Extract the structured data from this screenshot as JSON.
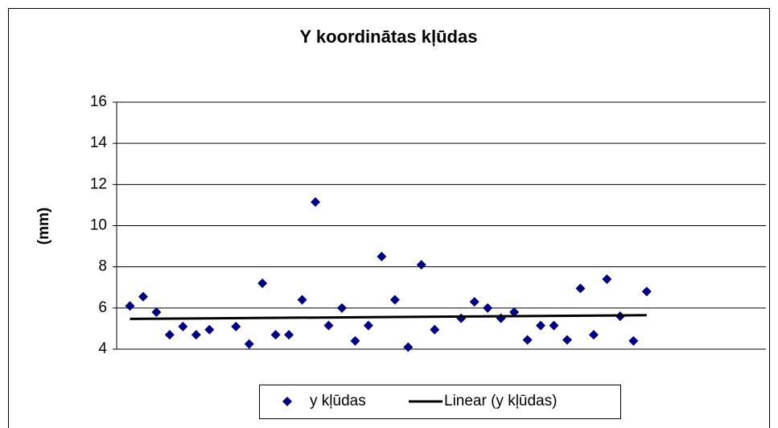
{
  "chart_data": {
    "type": "scatter",
    "title": "Y koordinātas kļūdas",
    "y_label": "(mm)",
    "series": [
      {
        "name": "y kļūdas",
        "color": "#000080",
        "x": [
          1,
          2,
          3,
          4,
          5,
          6,
          7,
          9,
          10,
          11,
          12,
          13,
          14,
          15,
          16,
          17,
          18,
          19,
          20,
          21,
          22,
          23,
          24,
          26,
          27,
          28,
          29,
          30,
          31,
          32,
          33,
          34,
          35,
          36,
          37,
          38,
          39,
          40
        ],
        "values": [
          6.1,
          6.55,
          5.8,
          4.7,
          5.1,
          4.7,
          4.95,
          5.1,
          4.25,
          7.2,
          4.7,
          4.7,
          6.4,
          11.15,
          5.15,
          6.0,
          4.4,
          5.15,
          8.5,
          6.4,
          4.1,
          8.1,
          4.95,
          5.5,
          6.3,
          6.0,
          5.5,
          5.8,
          4.45,
          5.15,
          5.15,
          4.45,
          6.95,
          4.7,
          7.4,
          5.6,
          4.4,
          6.8
        ]
      }
    ],
    "trendline": {
      "name": "Linear (y kļūdas)",
      "color": "#000000",
      "x": [
        1,
        40
      ],
      "values": [
        5.47,
        5.65
      ]
    },
    "xlim": [
      0,
      49
    ],
    "ylim": [
      4,
      16
    ],
    "yticks": [
      4,
      6,
      8,
      10,
      12,
      14,
      16
    ],
    "grid": true,
    "legend": "bottom"
  }
}
